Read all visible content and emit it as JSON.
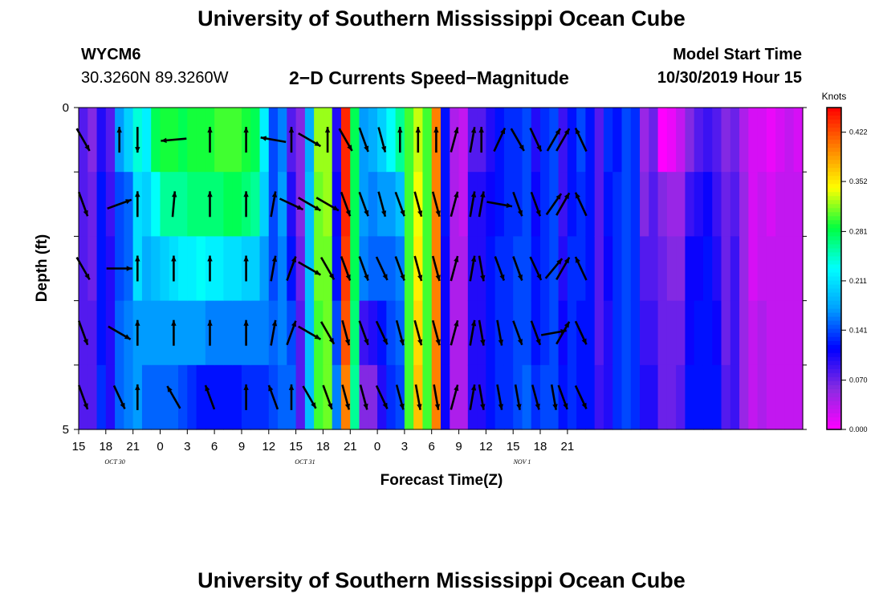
{
  "header": {
    "title": "University of Southern Mississippi Ocean Cube",
    "footer_title": "University of Southern Mississippi Ocean Cube",
    "station": "WYCM6",
    "coords": "30.3260N 89.3260W",
    "subtitle": "2−D Currents Speed−Magnitude",
    "model_label": "Model Start Time",
    "model_time": "10/30/2019 Hour 15"
  },
  "chart_data": {
    "type": "heatmap",
    "title": "2−D Currents Speed−Magnitude",
    "xlabel": "Forecast Time(Z)",
    "ylabel": "Depth (ft)",
    "ylim": [
      0,
      5
    ],
    "y_ticks": [
      {
        "value": 0,
        "label": "0"
      },
      {
        "value": 5,
        "label": "5"
      }
    ],
    "x_tick_labels": [
      "15",
      "18",
      "21",
      "0",
      "3",
      "6",
      "9",
      "12",
      "15",
      "18",
      "21",
      "0",
      "3",
      "6",
      "9",
      "12",
      "15",
      "18",
      "21"
    ],
    "date_labels": [
      {
        "label": "OCT 30",
        "hour_index": 4
      },
      {
        "label": "OCT 31",
        "hour_index": 25
      },
      {
        "label": "NOV 1",
        "hour_index": 49
      }
    ],
    "colorbar": {
      "unit": "Knots",
      "min": 0.0,
      "max": 0.457,
      "tick_values": [
        0.0,
        0.07,
        0.141,
        0.211,
        0.281,
        0.352,
        0.422
      ],
      "tick_labels": [
        "0.000",
        "0.070",
        "0.141",
        "0.211",
        "0.281",
        "0.352",
        "0.422"
      ],
      "colors": [
        "#ff00ff",
        "#8a2be2",
        "#0000ff",
        "#00a0ff",
        "#00ffff",
        "#00ff40",
        "#ffff00",
        "#ff8000",
        "#ff0000"
      ]
    },
    "depth_layers": 5,
    "hours_start": "10/30 15Z",
    "hour_step": 1,
    "profiles": [
      [
        0.08,
        0.08,
        0.08,
        0.08,
        0.08
      ],
      [
        0.06,
        0.07,
        0.07,
        0.08,
        0.08
      ],
      [
        0.1,
        0.12,
        0.12,
        0.12,
        0.13
      ],
      [
        0.08,
        0.09,
        0.1,
        0.1,
        0.1
      ],
      [
        0.17,
        0.14,
        0.14,
        0.15,
        0.15
      ],
      [
        0.2,
        0.15,
        0.15,
        0.16,
        0.16
      ],
      [
        0.24,
        0.21,
        0.21,
        0.17,
        0.17
      ],
      [
        0.22,
        0.2,
        0.18,
        0.17,
        0.15
      ],
      [
        0.28,
        0.23,
        0.19,
        0.17,
        0.15
      ],
      [
        0.29,
        0.26,
        0.2,
        0.17,
        0.15
      ],
      [
        0.29,
        0.26,
        0.21,
        0.17,
        0.15
      ],
      [
        0.28,
        0.26,
        0.22,
        0.17,
        0.14
      ],
      [
        0.29,
        0.27,
        0.22,
        0.17,
        0.13
      ],
      [
        0.29,
        0.27,
        0.23,
        0.17,
        0.12
      ],
      [
        0.29,
        0.27,
        0.22,
        0.16,
        0.12
      ],
      [
        0.3,
        0.27,
        0.22,
        0.16,
        0.12
      ],
      [
        0.3,
        0.28,
        0.21,
        0.16,
        0.12
      ],
      [
        0.3,
        0.28,
        0.21,
        0.16,
        0.12
      ],
      [
        0.29,
        0.27,
        0.2,
        0.16,
        0.13
      ],
      [
        0.28,
        0.26,
        0.2,
        0.16,
        0.13
      ],
      [
        0.22,
        0.2,
        0.17,
        0.16,
        0.13
      ],
      [
        0.14,
        0.14,
        0.14,
        0.15,
        0.14
      ],
      [
        0.16,
        0.17,
        0.16,
        0.16,
        0.15
      ],
      [
        0.08,
        0.1,
        0.12,
        0.14,
        0.15
      ],
      [
        0.06,
        0.06,
        0.07,
        0.08,
        0.08
      ],
      [
        0.18,
        0.19,
        0.19,
        0.19,
        0.19
      ],
      [
        0.32,
        0.31,
        0.31,
        0.3,
        0.3
      ],
      [
        0.32,
        0.32,
        0.31,
        0.31,
        0.31
      ],
      [
        0.1,
        0.11,
        0.12,
        0.14,
        0.16
      ],
      [
        0.44,
        0.44,
        0.43,
        0.42,
        0.4
      ],
      [
        0.28,
        0.28,
        0.28,
        0.27,
        0.26
      ],
      [
        0.17,
        0.17,
        0.16,
        0.09,
        0.06
      ],
      [
        0.18,
        0.16,
        0.15,
        0.1,
        0.06
      ],
      [
        0.2,
        0.17,
        0.15,
        0.12,
        0.1
      ],
      [
        0.23,
        0.17,
        0.15,
        0.14,
        0.13
      ],
      [
        0.26,
        0.19,
        0.16,
        0.15,
        0.14
      ],
      [
        0.3,
        0.3,
        0.3,
        0.3,
        0.3
      ],
      [
        0.33,
        0.34,
        0.35,
        0.36,
        0.37
      ],
      [
        0.3,
        0.3,
        0.3,
        0.3,
        0.3
      ],
      [
        0.4,
        0.4,
        0.4,
        0.4,
        0.4
      ],
      [
        0.12,
        0.12,
        0.11,
        0.11,
        0.11
      ],
      [
        0.04,
        0.04,
        0.04,
        0.04,
        0.04
      ],
      [
        0.03,
        0.03,
        0.04,
        0.04,
        0.04
      ],
      [
        0.08,
        0.1,
        0.1,
        0.1,
        0.1
      ],
      [
        0.08,
        0.1,
        0.1,
        0.1,
        0.1
      ],
      [
        0.1,
        0.11,
        0.12,
        0.12,
        0.12
      ],
      [
        0.12,
        0.12,
        0.13,
        0.13,
        0.13
      ],
      [
        0.13,
        0.13,
        0.13,
        0.13,
        0.13
      ],
      [
        0.13,
        0.13,
        0.14,
        0.14,
        0.14
      ],
      [
        0.14,
        0.14,
        0.14,
        0.14,
        0.15
      ],
      [
        0.1,
        0.11,
        0.12,
        0.12,
        0.13
      ],
      [
        0.13,
        0.13,
        0.13,
        0.13,
        0.14
      ],
      [
        0.14,
        0.14,
        0.14,
        0.14,
        0.14
      ],
      [
        0.09,
        0.09,
        0.1,
        0.11,
        0.12
      ],
      [
        0.12,
        0.12,
        0.13,
        0.13,
        0.13
      ],
      [
        0.14,
        0.13,
        0.13,
        0.12,
        0.12
      ],
      [
        0.12,
        0.12,
        0.12,
        0.12,
        0.12
      ],
      [
        0.08,
        0.08,
        0.08,
        0.08,
        0.09
      ],
      [
        0.13,
        0.12,
        0.11,
        0.1,
        0.1
      ],
      [
        0.12,
        0.13,
        0.13,
        0.13,
        0.13
      ],
      [
        0.14,
        0.14,
        0.14,
        0.14,
        0.14
      ],
      [
        0.13,
        0.13,
        0.13,
        0.13,
        0.13
      ],
      [
        0.05,
        0.06,
        0.08,
        0.09,
        0.1
      ],
      [
        0.07,
        0.08,
        0.08,
        0.09,
        0.1
      ],
      [
        0.0,
        0.06,
        0.07,
        0.07,
        0.07
      ],
      [
        0.01,
        0.05,
        0.06,
        0.07,
        0.07
      ],
      [
        0.03,
        0.05,
        0.06,
        0.07,
        0.08
      ],
      [
        0.06,
        0.09,
        0.11,
        0.11,
        0.12
      ],
      [
        0.08,
        0.1,
        0.11,
        0.12,
        0.12
      ],
      [
        0.09,
        0.11,
        0.12,
        0.12,
        0.12
      ],
      [
        0.08,
        0.09,
        0.1,
        0.11,
        0.12
      ],
      [
        0.06,
        0.07,
        0.07,
        0.07,
        0.08
      ],
      [
        0.07,
        0.08,
        0.09,
        0.09,
        0.09
      ],
      [
        0.04,
        0.05,
        0.05,
        0.05,
        0.05
      ],
      [
        0.02,
        0.02,
        0.02,
        0.03,
        0.03
      ],
      [
        0.02,
        0.03,
        0.03,
        0.04,
        0.04
      ],
      [
        0.01,
        0.02,
        0.03,
        0.03,
        0.03
      ],
      [
        0.02,
        0.03,
        0.03,
        0.03,
        0.03
      ],
      [
        0.03,
        0.03,
        0.03,
        0.03,
        0.03
      ],
      [
        0.02,
        0.03,
        0.03,
        0.03,
        0.03
      ]
    ],
    "vector_times": [
      0,
      4,
      6,
      10,
      14,
      18,
      21,
      23,
      25,
      27,
      29,
      31,
      33,
      35,
      37,
      39,
      41,
      43,
      44,
      46,
      48,
      50,
      52,
      53,
      55
    ],
    "vectors_dir_deg": [
      [
        150,
        160,
        150,
        160,
        160
      ],
      [
        0,
        70,
        90,
        120,
        155
      ],
      [
        180,
        0,
        0,
        0,
        0
      ],
      [
        265,
        5,
        0,
        0,
        330
      ],
      [
        0,
        0,
        0,
        0,
        340
      ],
      [
        0,
        0,
        0,
        0,
        0
      ],
      [
        280,
        10,
        10,
        10,
        340
      ],
      [
        0,
        115,
        20,
        20,
        0
      ],
      [
        120,
        120,
        120,
        120,
        150
      ],
      [
        0,
        120,
        150,
        150,
        160
      ],
      [
        150,
        160,
        160,
        165,
        165
      ],
      [
        160,
        160,
        160,
        160,
        165
      ],
      [
        165,
        165,
        155,
        155,
        155
      ],
      [
        0,
        160,
        160,
        165,
        165
      ],
      [
        0,
        165,
        165,
        165,
        170
      ],
      [
        0,
        165,
        165,
        165,
        170
      ],
      [
        15,
        15,
        15,
        15,
        15
      ],
      [
        10,
        10,
        10,
        10,
        10
      ],
      [
        0,
        10,
        170,
        170,
        170
      ],
      [
        25,
        100,
        160,
        170,
        170
      ],
      [
        150,
        160,
        160,
        160,
        170
      ],
      [
        155,
        160,
        155,
        160,
        165
      ],
      [
        30,
        35,
        40,
        80,
        170
      ],
      [
        30,
        30,
        30,
        30,
        160
      ],
      [
        335,
        335,
        335,
        155,
        155
      ]
    ]
  }
}
